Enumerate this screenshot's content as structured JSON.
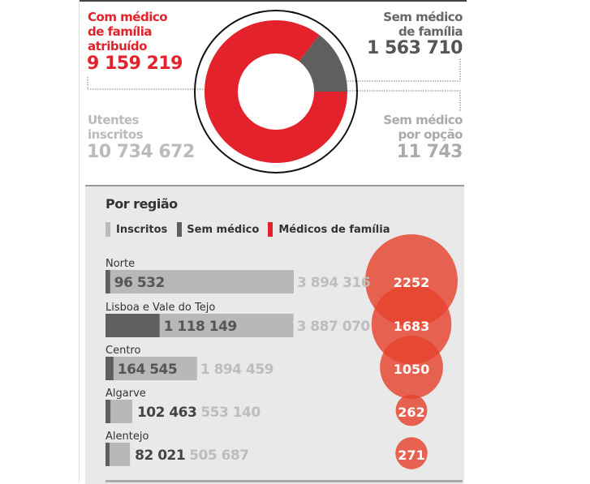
{
  "summary": {
    "with_doctor_label": "Com médico de família atribuído",
    "with_doctor_lines": [
      "Com médico",
      "de família",
      "atribuído"
    ],
    "with_doctor_value": "9 159 219",
    "without_doctor_lines": [
      "Sem médico",
      "de família"
    ],
    "without_doctor_value": "1 563 710",
    "registered_lines": [
      "Utentes",
      "inscritos"
    ],
    "registered_value": "10 734 672",
    "by_choice_lines": [
      "Sem médico",
      "por opção"
    ],
    "by_choice_value": "11 743"
  },
  "colors": {
    "red": "#e3222b",
    "dark_gray": "#5f5f5f",
    "light_gray": "#b5b5b5",
    "bubble": "#e8553f"
  },
  "chart_data": [
    {
      "type": "pie",
      "donut": true,
      "slices": [
        {
          "label": "Com médico de família atribuído",
          "value": 9159219,
          "color": "#e3222b"
        },
        {
          "label": "Sem médico de família",
          "value": 1563710,
          "color": "#5f5f5f"
        }
      ]
    },
    {
      "type": "bar",
      "title": "Por região",
      "legend": [
        "Inscritos",
        "Sem médico",
        "Médicos de família"
      ],
      "legend_placement": "top-left",
      "categories": [
        "Norte",
        "Lisboa e Vale do Tejo",
        "Centro",
        "Algarve",
        "Alentejo"
      ],
      "series": [
        {
          "name": "Inscritos",
          "values": [
            3894316,
            3887070,
            1894459,
            553140,
            505687
          ],
          "labels": [
            "3 894 316",
            "3 887 070",
            "1 894 459",
            "553 140",
            "505 687"
          ]
        },
        {
          "name": "Sem médico",
          "values": [
            96532,
            1118149,
            164545,
            102463,
            82021
          ],
          "labels": [
            "96 532",
            "1 118 149",
            "164 545",
            "102 463",
            "82 021"
          ]
        },
        {
          "name": "Médicos de família",
          "values": [
            2252,
            1683,
            1050,
            262,
            271
          ],
          "labels": [
            "2252",
            "1683",
            "1050",
            "262",
            "271"
          ]
        }
      ]
    }
  ]
}
